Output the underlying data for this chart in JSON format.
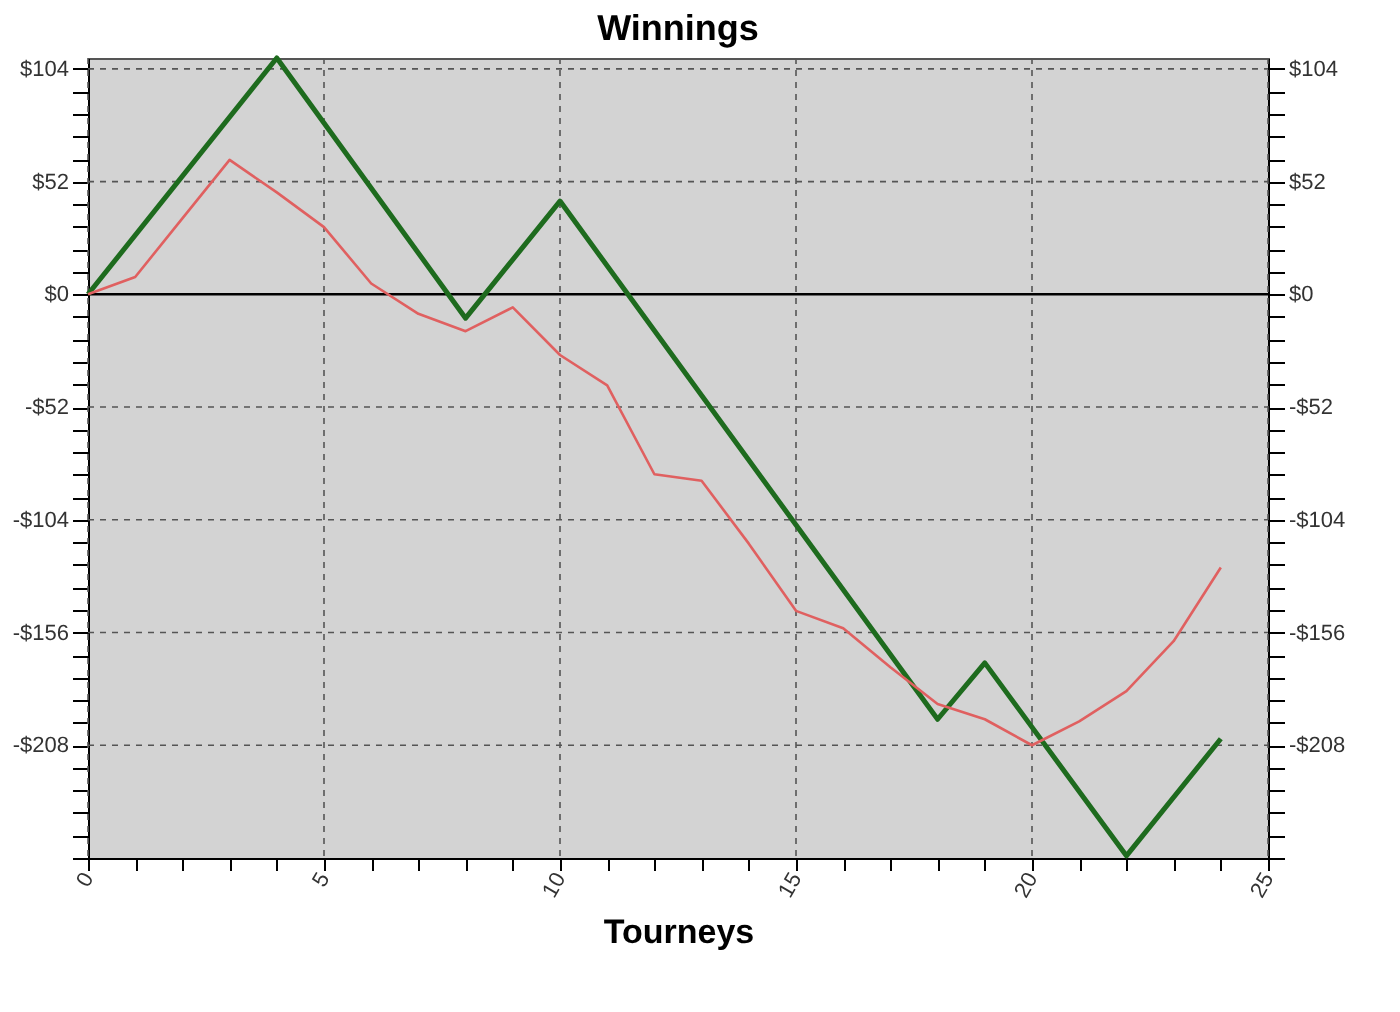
{
  "chart_data": {
    "type": "line",
    "title": "Winnings",
    "xlabel": "Tourneys",
    "xlim": [
      0,
      25
    ],
    "xticks": [
      0,
      {
        "value": 1,
        "label": null
      },
      {
        "value": 2,
        "label": null
      },
      {
        "value": 3,
        "label": null
      },
      {
        "value": 4,
        "label": null
      },
      5,
      {
        "value": 6,
        "label": null
      },
      {
        "value": 7,
        "label": null
      },
      {
        "value": 8,
        "label": null
      },
      {
        "value": 9,
        "label": null
      },
      10,
      {
        "value": 11,
        "label": null
      },
      {
        "value": 12,
        "label": null
      },
      {
        "value": 13,
        "label": null
      },
      {
        "value": 14,
        "label": null
      },
      15,
      {
        "value": 16,
        "label": null
      },
      {
        "value": 17,
        "label": null
      },
      {
        "value": 18,
        "label": null
      },
      {
        "value": 19,
        "label": null
      },
      20,
      {
        "value": 21,
        "label": null
      },
      {
        "value": 22,
        "label": null
      },
      {
        "value": 23,
        "label": null
      },
      {
        "value": 24,
        "label": null
      },
      25
    ],
    "ylim": [
      -260,
      109
    ],
    "yticks": [
      {
        "value": -260,
        "label": null
      },
      {
        "value": -249.6,
        "label": null
      },
      {
        "value": -239.2,
        "label": null
      },
      {
        "value": -228.8,
        "label": null
      },
      {
        "value": -218.4,
        "label": null
      },
      {
        "value": -208,
        "label": "-$208"
      },
      {
        "value": -197.6,
        "label": null
      },
      {
        "value": -187.2,
        "label": null
      },
      {
        "value": -176.8,
        "label": null
      },
      {
        "value": -166.4,
        "label": null
      },
      {
        "value": -156,
        "label": "-$156"
      },
      {
        "value": -145.6,
        "label": null
      },
      {
        "value": -135.2,
        "label": null
      },
      {
        "value": -124.8,
        "label": null
      },
      {
        "value": -114.4,
        "label": null
      },
      {
        "value": -104,
        "label": "-$104"
      },
      {
        "value": -93.6,
        "label": null
      },
      {
        "value": -83.2,
        "label": null
      },
      {
        "value": -72.8,
        "label": null
      },
      {
        "value": -62.4,
        "label": null
      },
      {
        "value": -52,
        "label": "-$52"
      },
      {
        "value": -41.6,
        "label": null
      },
      {
        "value": -31.2,
        "label": null
      },
      {
        "value": -20.8,
        "label": null
      },
      {
        "value": -10.4,
        "label": null
      },
      {
        "value": 0,
        "label": "$0"
      },
      {
        "value": 10.4,
        "label": null
      },
      {
        "value": 20.8,
        "label": null
      },
      {
        "value": 31.2,
        "label": null
      },
      {
        "value": 41.6,
        "label": null
      },
      {
        "value": 52,
        "label": "$52"
      },
      {
        "value": 62.4,
        "label": null
      },
      {
        "value": 72.8,
        "label": null
      },
      {
        "value": 83.2,
        "label": null
      },
      {
        "value": 93.6,
        "label": null
      },
      {
        "value": 104,
        "label": "$104"
      }
    ],
    "y2lim": [
      -260,
      109
    ],
    "y2ticks": [
      {
        "value": -260,
        "label": null
      },
      {
        "value": -249.6,
        "label": null
      },
      {
        "value": -239.2,
        "label": null
      },
      {
        "value": -228.8,
        "label": null
      },
      {
        "value": -218.4,
        "label": null
      },
      {
        "value": -208,
        "label": "-$208"
      },
      {
        "value": -197.6,
        "label": null
      },
      {
        "value": -187.2,
        "label": null
      },
      {
        "value": -176.8,
        "label": null
      },
      {
        "value": -166.4,
        "label": null
      },
      {
        "value": -156,
        "label": "-$156"
      },
      {
        "value": -145.6,
        "label": null
      },
      {
        "value": -135.2,
        "label": null
      },
      {
        "value": -124.8,
        "label": null
      },
      {
        "value": -114.4,
        "label": null
      },
      {
        "value": -104,
        "label": "-$104"
      },
      {
        "value": -93.6,
        "label": null
      },
      {
        "value": -83.2,
        "label": null
      },
      {
        "value": -72.8,
        "label": null
      },
      {
        "value": -62.4,
        "label": null
      },
      {
        "value": -52,
        "label": "-$52"
      },
      {
        "value": -41.6,
        "label": null
      },
      {
        "value": -31.2,
        "label": null
      },
      {
        "value": -20.8,
        "label": null
      },
      {
        "value": -10.4,
        "label": null
      },
      {
        "value": 0,
        "label": "$0"
      },
      {
        "value": 10.4,
        "label": null
      },
      {
        "value": 20.8,
        "label": null
      },
      {
        "value": 31.2,
        "label": null
      },
      {
        "value": 41.6,
        "label": null
      },
      {
        "value": 52,
        "label": "$52"
      },
      {
        "value": 62.4,
        "label": null
      },
      {
        "value": 72.8,
        "label": null
      },
      {
        "value": 83.2,
        "label": null
      },
      {
        "value": 93.6,
        "label": null
      },
      {
        "value": 104,
        "label": "$104"
      }
    ],
    "grid": true,
    "marker": "none",
    "line_style": "solid",
    "ref_lines": [
      {
        "axis": "y",
        "value": 0,
        "color": "#000000",
        "line_style": "solid"
      }
    ],
    "series": [
      {
        "color": "#1e6b1e",
        "x": [
          0,
          4,
          8,
          10,
          18,
          19,
          22,
          24
        ],
        "values": [
          0,
          109,
          -11,
          43,
          -196,
          -170,
          -259,
          -205
        ]
      },
      {
        "color": "#e06060",
        "x": [
          0,
          1,
          2,
          3,
          4,
          5,
          6,
          7,
          8,
          9,
          10,
          11,
          12,
          13,
          14,
          15,
          16,
          17,
          18,
          19,
          20,
          21,
          22,
          23,
          24
        ],
        "values": [
          0,
          8,
          35,
          62,
          47,
          31,
          5,
          -9,
          -17,
          -6,
          -28,
          -42,
          -83,
          -86,
          -115,
          -146,
          -154,
          -172,
          -189,
          -196,
          -208,
          -197,
          -183,
          -160,
          -126
        ]
      }
    ]
  }
}
